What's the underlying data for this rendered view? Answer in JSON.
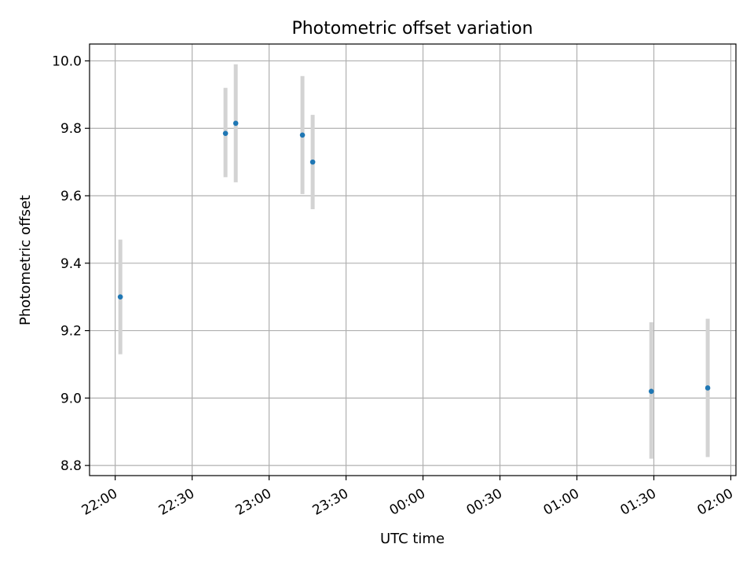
{
  "chart_data": {
    "type": "scatter",
    "title": "Photometric offset variation",
    "xlabel": "UTC time",
    "ylabel": "Photometric offset",
    "x_ticks": [
      "22:00",
      "22:30",
      "23:00",
      "23:30",
      "00:00",
      "00:30",
      "01:00",
      "01:30",
      "02:00"
    ],
    "y_ticks": [
      "8.8",
      "9.0",
      "9.2",
      "9.4",
      "9.6",
      "9.8",
      "10.0"
    ],
    "xlim": [
      "21:50",
      "02:02"
    ],
    "ylim": [
      8.77,
      10.05
    ],
    "grid": true,
    "colors": {
      "point": "#1f77b4",
      "errorbar": "#d3d3d3",
      "grid": "#b0b0b0"
    },
    "series": [
      {
        "points": [
          {
            "x": "22:02",
            "y": 9.3,
            "yerr_low": 9.13,
            "yerr_high": 9.47
          },
          {
            "x": "22:43",
            "y": 9.785,
            "yerr_low": 9.655,
            "yerr_high": 9.92
          },
          {
            "x": "22:47",
            "y": 9.815,
            "yerr_low": 9.64,
            "yerr_high": 9.99
          },
          {
            "x": "23:13",
            "y": 9.78,
            "yerr_low": 9.605,
            "yerr_high": 9.955
          },
          {
            "x": "23:17",
            "y": 9.7,
            "yerr_low": 9.56,
            "yerr_high": 9.84
          },
          {
            "x": "01:29",
            "y": 9.02,
            "yerr_low": 8.82,
            "yerr_high": 9.225
          },
          {
            "x": "01:51",
            "y": 9.03,
            "yerr_low": 8.825,
            "yerr_high": 9.235
          }
        ]
      }
    ]
  }
}
